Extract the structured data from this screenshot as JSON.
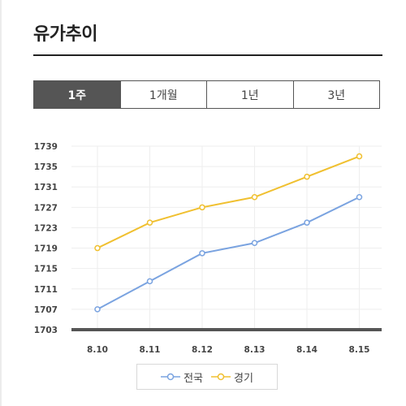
{
  "header": {
    "title": "유가추이"
  },
  "tabs": [
    {
      "label": "1주",
      "active": true
    },
    {
      "label": "1개월",
      "active": false
    },
    {
      "label": "1년",
      "active": false
    },
    {
      "label": "3년",
      "active": false
    }
  ],
  "colors": {
    "nationwide": "#7aa3e0",
    "gyeonggi": "#f0c030",
    "baseline": "#555555",
    "grid": "#eeeeee"
  },
  "chart_data": {
    "type": "line",
    "categories": [
      "8.10",
      "8.11",
      "8.12",
      "8.13",
      "8.14",
      "8.15"
    ],
    "yticks": [
      1703,
      1707,
      1711,
      1715,
      1719,
      1723,
      1727,
      1731,
      1735,
      1739
    ],
    "ylim": [
      1703,
      1739
    ],
    "grid": true,
    "legend_position": "bottom",
    "series": [
      {
        "name": "전국",
        "values": [
          1707,
          1712.5,
          1718,
          1720,
          1724,
          1729
        ]
      },
      {
        "name": "경기",
        "values": [
          1719,
          1724,
          1727,
          1729,
          1733,
          1737
        ]
      }
    ]
  }
}
